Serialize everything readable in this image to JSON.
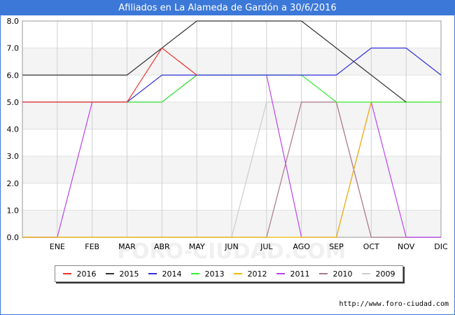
{
  "chart_data": {
    "type": "line",
    "title": "Afiliados en La Alameda de Gardón a 30/6/2016",
    "categories": [
      "",
      "ENE",
      "FEB",
      "MAR",
      "ABR",
      "MAY",
      "JUN",
      "JUL",
      "AGO",
      "SEP",
      "OCT",
      "NOV",
      "DIC"
    ],
    "ylim": [
      0,
      8
    ],
    "yticks": [
      "0.0",
      "1.0",
      "2.0",
      "3.0",
      "4.0",
      "5.0",
      "6.0",
      "7.0",
      "8.0"
    ],
    "grid": true,
    "legend_position": "bottom",
    "watermark": "FORO-CIUDAD.COM",
    "series": [
      {
        "name": "2016",
        "color": "#ee3333",
        "values": [
          5,
          5,
          5,
          5,
          7,
          6,
          null,
          null,
          null,
          null,
          null,
          null,
          null
        ]
      },
      {
        "name": "2015",
        "color": "#333333",
        "values": [
          6,
          6,
          6,
          6,
          7,
          8,
          8,
          8,
          8,
          7,
          6,
          5,
          null
        ]
      },
      {
        "name": "2014",
        "color": "#3333dd",
        "values": [
          5,
          5,
          5,
          5,
          6,
          6,
          6,
          6,
          6,
          6,
          7,
          7,
          6
        ]
      },
      {
        "name": "2013",
        "color": "#33ee33",
        "values": [
          5,
          5,
          5,
          5,
          5,
          6,
          6,
          6,
          6,
          5,
          5,
          5,
          5
        ]
      },
      {
        "name": "2012",
        "color": "#eebb00",
        "values": [
          0,
          0,
          0,
          0,
          0,
          0,
          0,
          0,
          0,
          0,
          5,
          5,
          5
        ]
      },
      {
        "name": "2011",
        "color": "#bb44ee",
        "values": [
          0,
          0,
          5,
          5,
          5,
          6,
          6,
          6,
          0,
          0,
          5,
          0,
          0
        ]
      },
      {
        "name": "2010",
        "color": "#aa7788",
        "values": [
          0,
          0,
          0,
          0,
          0,
          0,
          0,
          0,
          5,
          5,
          0,
          0,
          0
        ]
      },
      {
        "name": "2009",
        "color": "#cccccc",
        "values": [
          0,
          0,
          0,
          0,
          0,
          0,
          0,
          5,
          5,
          5,
          0,
          0,
          0
        ]
      }
    ]
  },
  "source_text": "http://www.foro-ciudad.com"
}
